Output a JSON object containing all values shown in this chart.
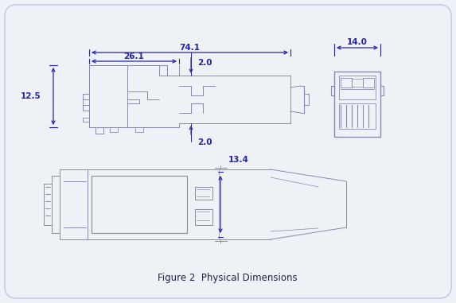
{
  "title": "Figure 2  Physical Dimensions",
  "bg": "#eef1f6",
  "dc": "#8888aa",
  "dimc": "#2222aa",
  "dim_74_1": "74.1",
  "dim_26_1": "26.1",
  "dim_2_0_top": "2.0",
  "dim_2_0_bot": "2.0",
  "dim_12_5": "12.5",
  "dim_14_0": "14.0",
  "dim_13_4": "13.4"
}
